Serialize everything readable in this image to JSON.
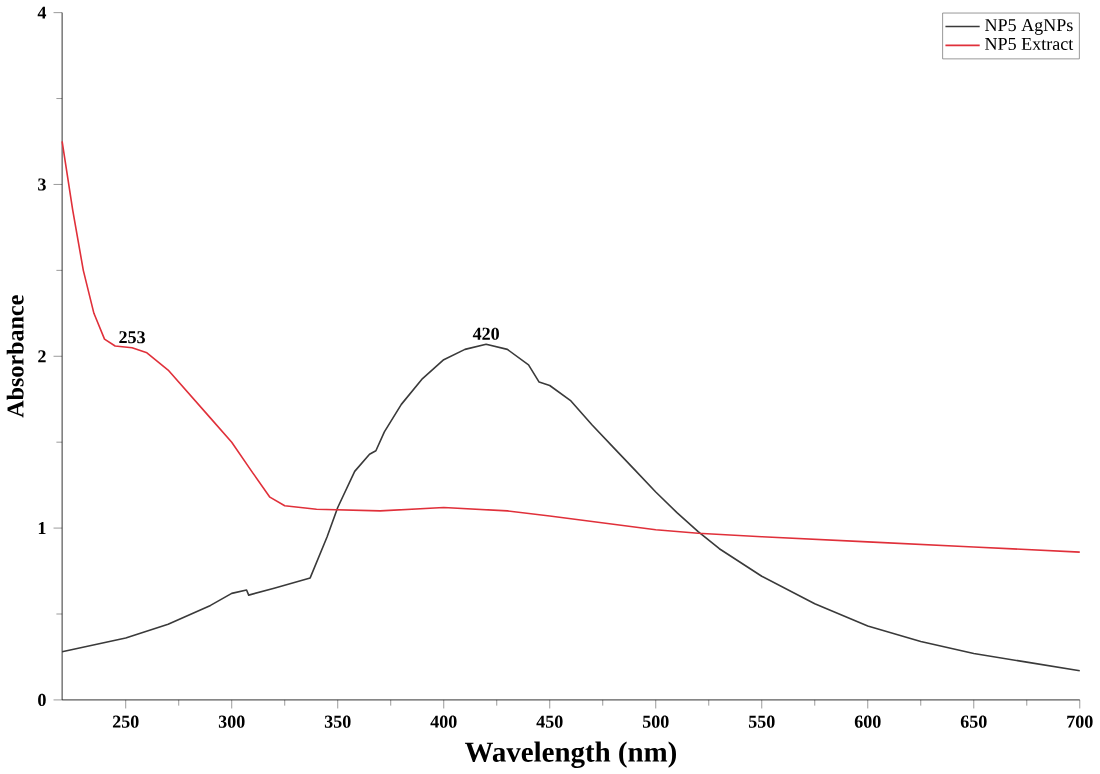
{
  "chart_data": {
    "type": "line",
    "xlabel": "Wavelength (nm)",
    "ylabel": "Absorbance",
    "xlim": [
      220,
      700
    ],
    "ylim": [
      0,
      4
    ],
    "xticks": [
      250,
      300,
      350,
      400,
      450,
      500,
      550,
      600,
      650,
      700
    ],
    "yticks": [
      0,
      1,
      2,
      3,
      4
    ],
    "legend": "top right",
    "grid": false,
    "annotations": [
      {
        "text": "253",
        "x": 253,
        "y": 2.05
      },
      {
        "text": "420",
        "x": 420,
        "y": 2.07
      }
    ],
    "series": [
      {
        "name": "NP5 AgNPs",
        "color": "#3a3a3a",
        "x": [
          220,
          250,
          270,
          290,
          300,
          307,
          308,
          320,
          337,
          345,
          350,
          358,
          365,
          368,
          372,
          380,
          390,
          400,
          410,
          420,
          430,
          440,
          445,
          450,
          460,
          470,
          480,
          490,
          500,
          510,
          520,
          530,
          550,
          575,
          600,
          625,
          650,
          675,
          700
        ],
        "values": [
          0.28,
          0.36,
          0.44,
          0.55,
          0.62,
          0.64,
          0.61,
          0.65,
          0.71,
          0.95,
          1.12,
          1.33,
          1.43,
          1.45,
          1.56,
          1.72,
          1.87,
          1.98,
          2.04,
          2.07,
          2.04,
          1.95,
          1.85,
          1.83,
          1.74,
          1.6,
          1.47,
          1.34,
          1.21,
          1.09,
          0.98,
          0.88,
          0.72,
          0.56,
          0.43,
          0.34,
          0.27,
          0.22,
          0.17
        ]
      },
      {
        "name": "NP5 Extract",
        "color": "#e0303a",
        "x": [
          220,
          225,
          230,
          235,
          240,
          245,
          253,
          260,
          270,
          280,
          290,
          300,
          310,
          318,
          325,
          340,
          370,
          400,
          430,
          450,
          500,
          520,
          550,
          600,
          650,
          700
        ],
        "values": [
          3.25,
          2.85,
          2.5,
          2.25,
          2.1,
          2.06,
          2.05,
          2.02,
          1.92,
          1.78,
          1.64,
          1.5,
          1.32,
          1.18,
          1.13,
          1.11,
          1.1,
          1.12,
          1.1,
          1.07,
          0.99,
          0.97,
          0.95,
          0.92,
          0.89,
          0.86
        ]
      }
    ]
  }
}
